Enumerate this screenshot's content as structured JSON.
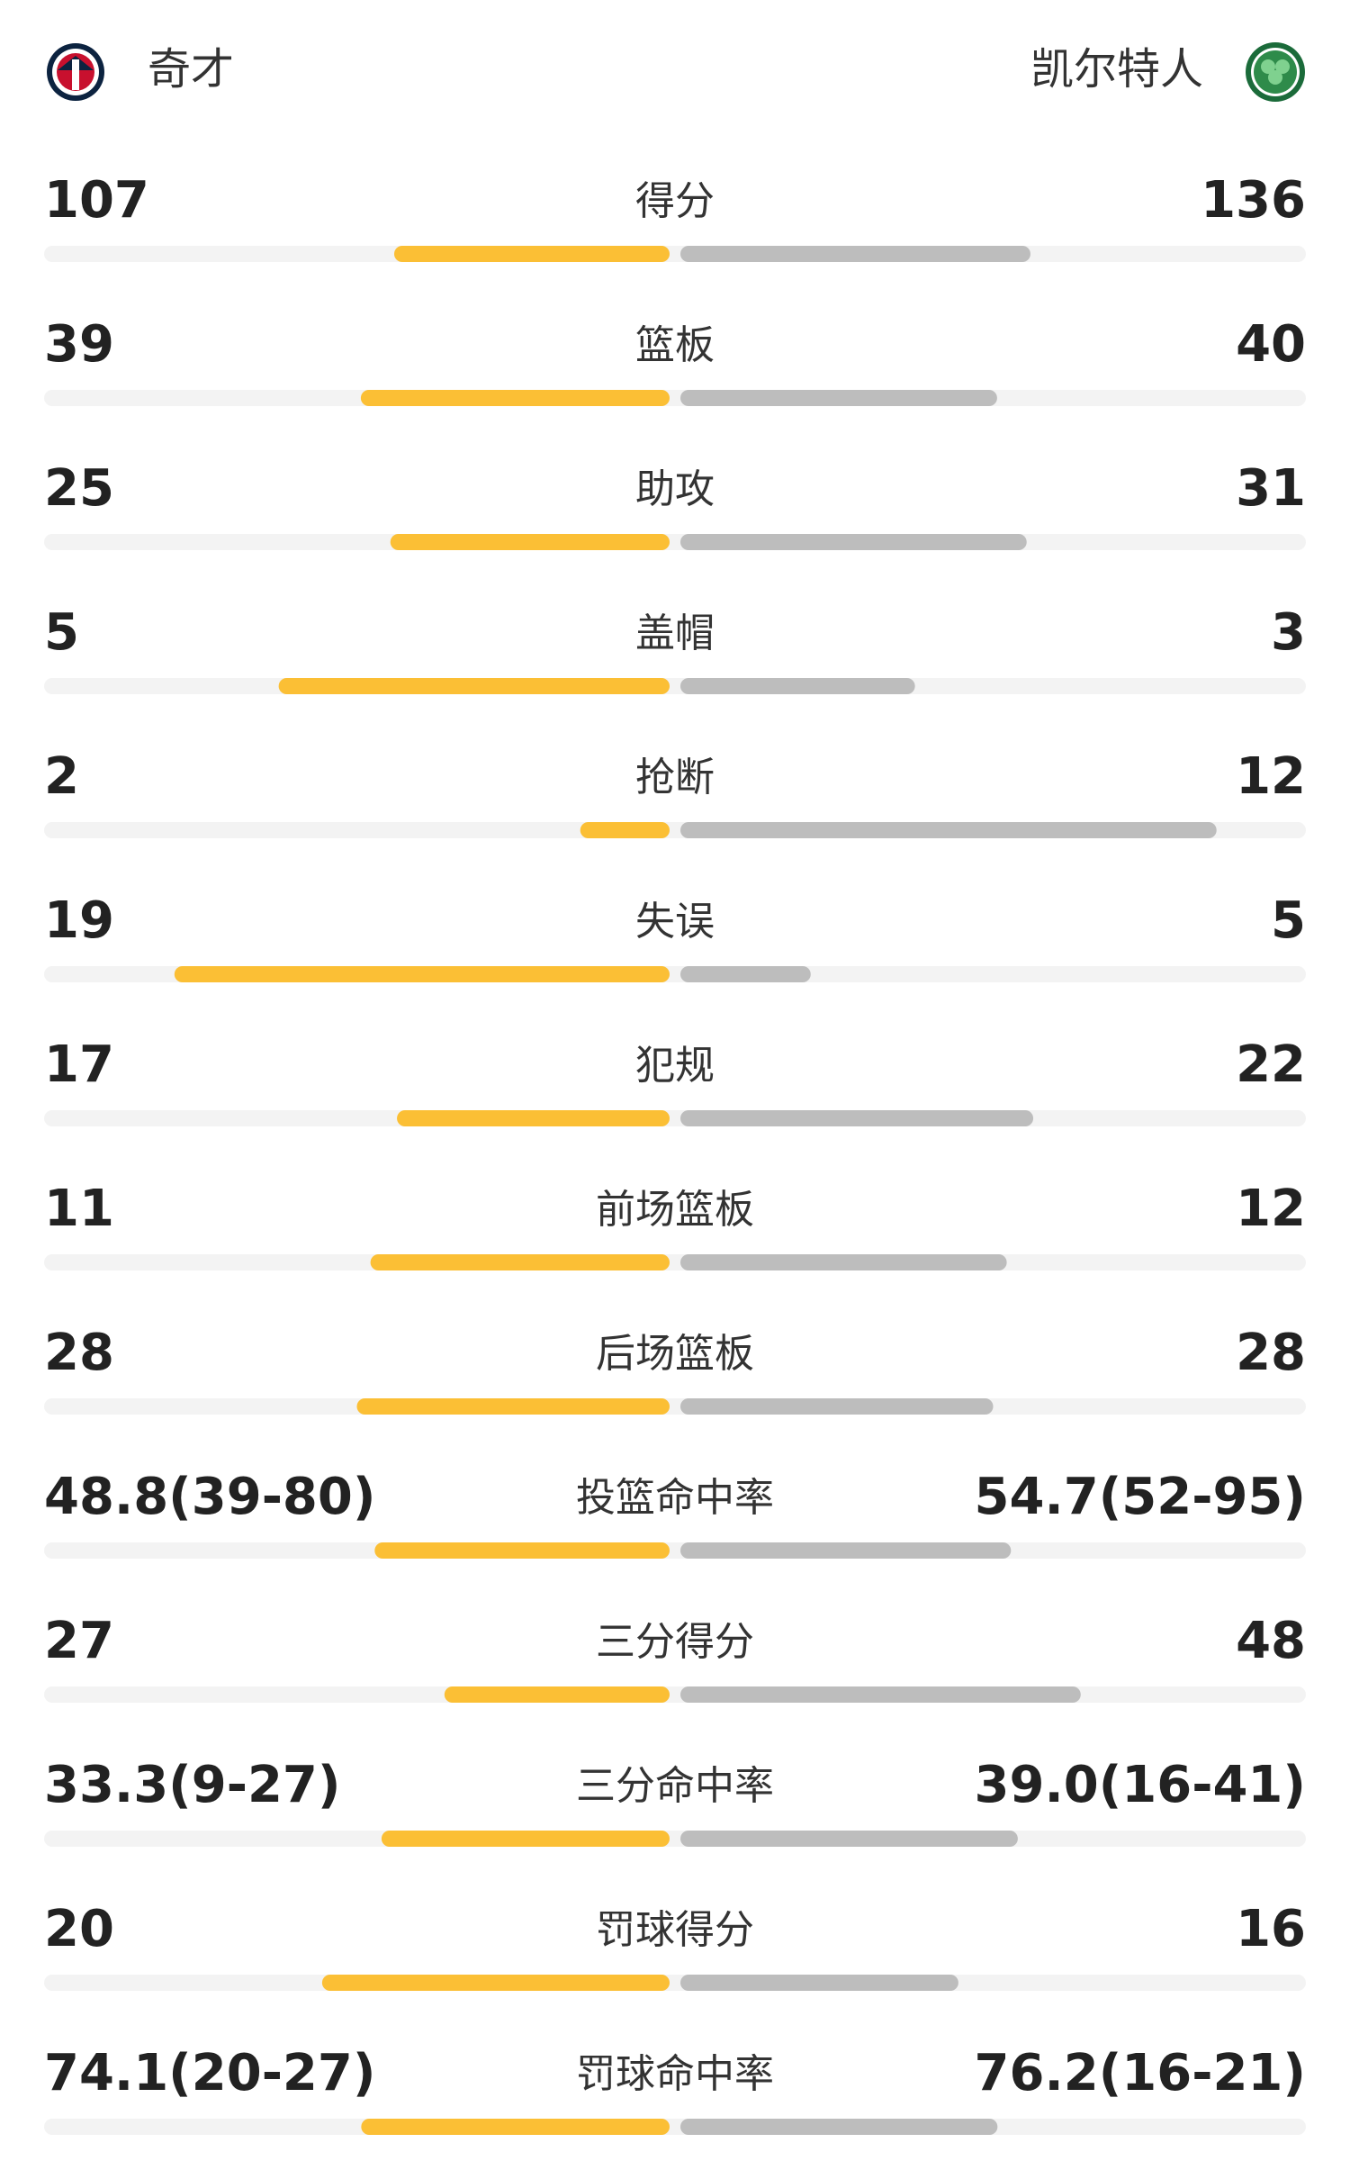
{
  "header": {
    "home": "奇才",
    "away": "凯尔特人"
  },
  "stats": [
    {
      "name": "得分",
      "home": 107,
      "away": 136
    },
    {
      "name": "篮板",
      "home": 39,
      "away": 40
    },
    {
      "name": "助攻",
      "home": 25,
      "away": 31
    },
    {
      "name": "盖帽",
      "home": 5,
      "away": 3
    },
    {
      "name": "抢断",
      "home": 2,
      "away": 12
    },
    {
      "name": "失误",
      "home": 19,
      "away": 5
    },
    {
      "name": "犯规",
      "home": 17,
      "away": 22
    },
    {
      "name": "前场篮板",
      "home": 11,
      "away": 12
    },
    {
      "name": "后场篮板",
      "home": 28,
      "away": 28
    },
    {
      "name": "投篮命中率",
      "home": 48.8,
      "away": 54.7,
      "home_label": "48.8(39-80)",
      "away_label": "54.7(52-95)"
    },
    {
      "name": "三分得分",
      "home": 27,
      "away": 48
    },
    {
      "name": "三分命中率",
      "home": 33.3,
      "away": 39.0,
      "home_label": "33.3(9-27)",
      "away_label": "39.0(16-41)"
    },
    {
      "name": "罚球得分",
      "home": 20,
      "away": 16
    },
    {
      "name": "罚球命中率",
      "home": 74.1,
      "away": 76.2,
      "home_label": "74.1(20-27)",
      "away_label": "76.2(16-21)"
    }
  ]
}
